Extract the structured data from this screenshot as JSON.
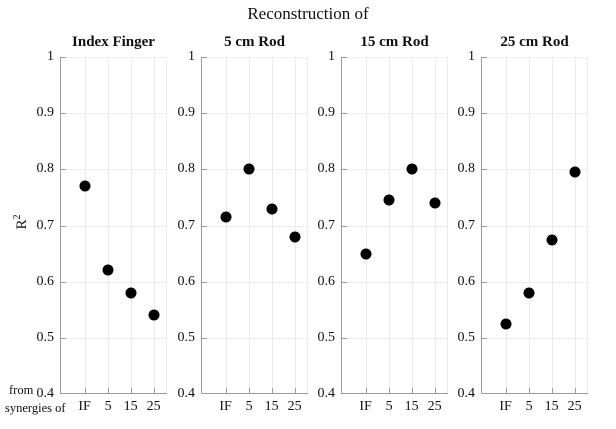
{
  "figure": {
    "title": "Reconstruction of",
    "ylabel": {
      "base": "R",
      "sup": "2"
    },
    "corner_label": {
      "line1": "from",
      "line2": "synergies of"
    }
  },
  "colors": {
    "background": "#ffffff",
    "axis": "#9a9a9a",
    "grid": "#ebebeb",
    "marker": "#000000",
    "text": "#111111"
  },
  "chart_data": [
    {
      "type": "scatter",
      "title": "Index Finger",
      "categories": [
        "IF",
        "5",
        "15",
        "25"
      ],
      "values": [
        0.77,
        0.62,
        0.58,
        0.54
      ],
      "ylim": [
        0.4,
        1
      ],
      "yticks": [
        1,
        0.9,
        0.8,
        0.7,
        0.6,
        0.5,
        0.4
      ],
      "ytick_labels": [
        "1",
        "0.9",
        "0.8",
        "0.7",
        "0.6",
        "0.5",
        "0.4"
      ],
      "grid": true,
      "legend": "none",
      "marker": "filled-circle"
    },
    {
      "type": "scatter",
      "title": "5 cm Rod",
      "categories": [
        "IF",
        "5",
        "15",
        "25"
      ],
      "values": [
        0.715,
        0.8,
        0.73,
        0.68
      ],
      "ylim": [
        0.4,
        1
      ],
      "yticks": [
        1,
        0.9,
        0.8,
        0.7,
        0.6,
        0.5,
        0.4
      ],
      "ytick_labels": [
        "1",
        "0.9",
        "0.8",
        "0.7",
        "0.6",
        "0.5",
        "0.4"
      ],
      "grid": true,
      "legend": "none",
      "marker": "filled-circle"
    },
    {
      "type": "scatter",
      "title": "15 cm Rod",
      "categories": [
        "IF",
        "5",
        "15",
        "25"
      ],
      "values": [
        0.65,
        0.745,
        0.8,
        0.74
      ],
      "ylim": [
        0.4,
        1
      ],
      "yticks": [
        1,
        0.9,
        0.8,
        0.7,
        0.6,
        0.5,
        0.4
      ],
      "ytick_labels": [
        "1",
        "0.9",
        "0.8",
        "0.7",
        "0.6",
        "0.5",
        "0.4"
      ],
      "grid": true,
      "legend": "none",
      "marker": "filled-circle"
    },
    {
      "type": "scatter",
      "title": "25 cm Rod",
      "categories": [
        "IF",
        "5",
        "15",
        "25"
      ],
      "values": [
        0.525,
        0.58,
        0.675,
        0.795
      ],
      "ylim": [
        0.4,
        1
      ],
      "yticks": [
        1,
        0.9,
        0.8,
        0.7,
        0.6,
        0.5,
        0.4
      ],
      "ytick_labels": [
        "1",
        "0.9",
        "0.8",
        "0.7",
        "0.6",
        "0.5",
        "0.4"
      ],
      "grid": true,
      "legend": "none",
      "marker": "filled-circle"
    }
  ]
}
